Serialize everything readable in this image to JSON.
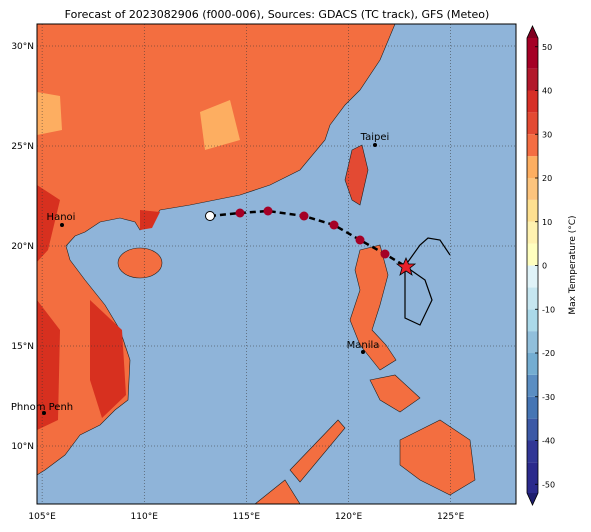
{
  "title": "Forecast of 2023082906 (f000-006), Sources: GDACS (TC track), GFS (Meteo)",
  "map": {
    "xlim": [
      104.75,
      128.2
    ],
    "ylim": [
      7.1,
      31.1
    ],
    "xticks": [
      {
        "value": 105,
        "label": "105°E"
      },
      {
        "value": 110,
        "label": "110°E"
      },
      {
        "value": 115,
        "label": "115°E"
      },
      {
        "value": 120,
        "label": "120°E"
      },
      {
        "value": 125,
        "label": "125°E"
      }
    ],
    "yticks": [
      {
        "value": 10,
        "label": "10°N"
      },
      {
        "value": 15,
        "label": "15°N"
      },
      {
        "value": 20,
        "label": "20°N"
      },
      {
        "value": 25,
        "label": "25°N"
      },
      {
        "value": 30,
        "label": "30°N"
      }
    ],
    "grid": true
  },
  "cities": [
    "Taipei",
    "Hanoi",
    "Manila",
    "Phnom Penh"
  ],
  "colorbar": {
    "label": "Max Temperature (°C)",
    "lim": [
      -52,
      52
    ],
    "ticks": [
      -50,
      -40,
      -30,
      -20,
      -10,
      0,
      10,
      20,
      30,
      40,
      50
    ],
    "step": 5,
    "colors": [
      "#2b2a8c",
      "#313695",
      "#3c59a6",
      "#4575b4",
      "#5b8ec2",
      "#74add1",
      "#91bfdb",
      "#abd9e9",
      "#c6e6f0",
      "#e0f3f8",
      "#ffffbf",
      "#fff2b0",
      "#fee090",
      "#fdc47d",
      "#fdae61",
      "#f46d43",
      "#e34a33",
      "#d73027",
      "#b2182b",
      "#a50026"
    ],
    "under": "#1e1e6e",
    "over": "#7f0020"
  }
}
